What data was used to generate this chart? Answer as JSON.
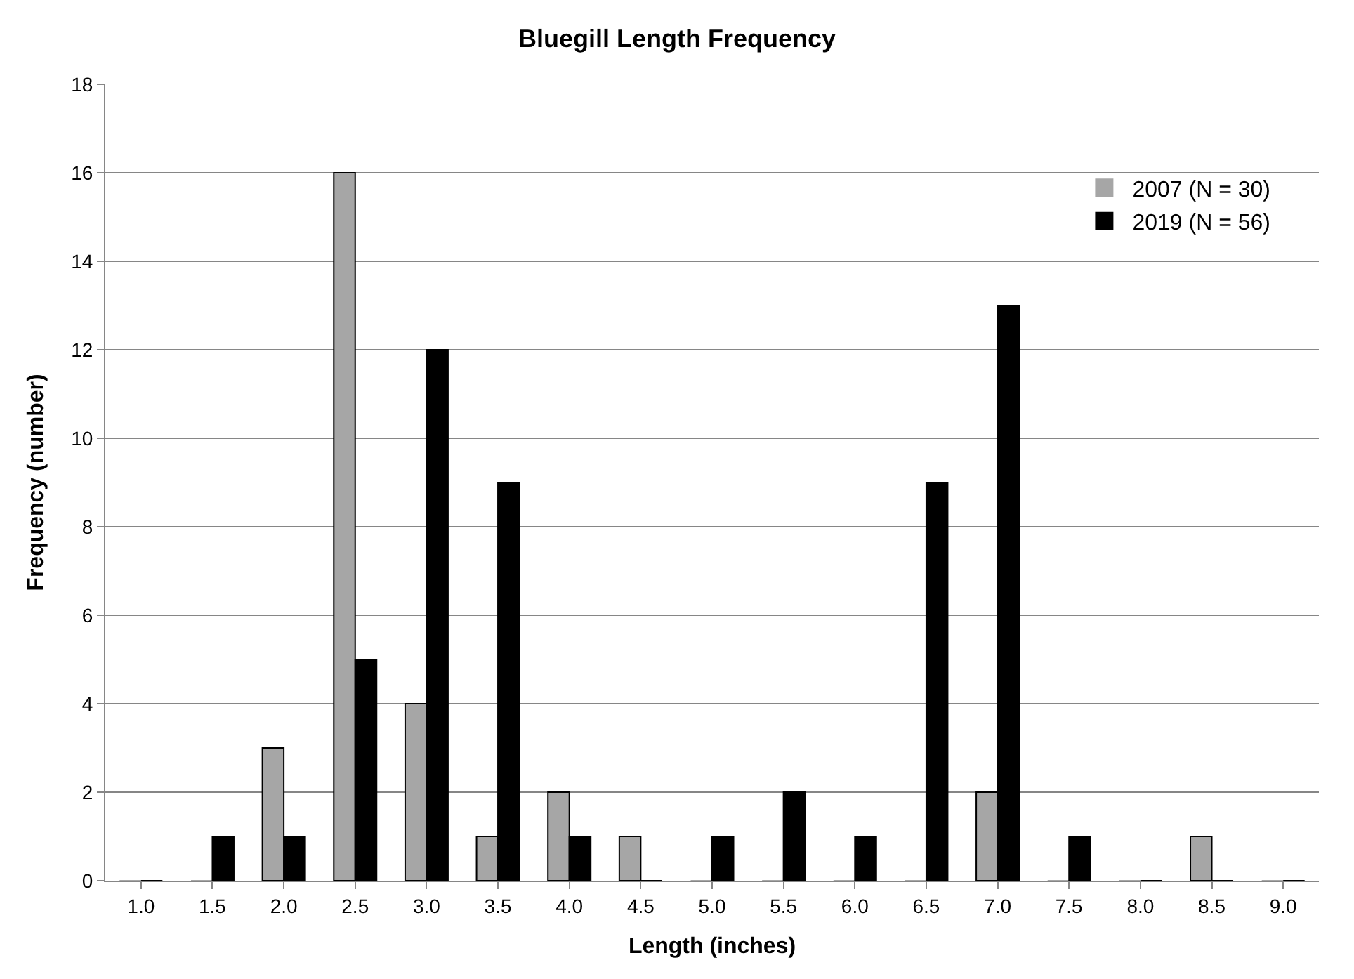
{
  "chart_data": {
    "type": "bar",
    "title": "Bluegill Length Frequency",
    "xlabel": "Length (inches)",
    "ylabel": "Frequency (number)",
    "categories": [
      "1.0",
      "1.5",
      "2.0",
      "2.5",
      "3.0",
      "3.5",
      "4.0",
      "4.5",
      "5.0",
      "5.5",
      "6.0",
      "6.5",
      "7.0",
      "7.5",
      "8.0",
      "8.5",
      "9.0"
    ],
    "series": [
      {
        "name": "2007 (N = 30)",
        "color": "#a6a6a6",
        "values": [
          0,
          0,
          3,
          16,
          4,
          1,
          2,
          1,
          0,
          0,
          0,
          0,
          2,
          0,
          0,
          1,
          0
        ]
      },
      {
        "name": "2019 (N = 56)",
        "color": "#000000",
        "values": [
          0,
          1,
          1,
          5,
          12,
          9,
          1,
          0,
          1,
          2,
          1,
          9,
          13,
          1,
          0,
          0,
          0
        ]
      }
    ],
    "ylim": [
      0,
      18
    ],
    "yticks": [
      0,
      2,
      4,
      6,
      8,
      10,
      12,
      14,
      16,
      18
    ],
    "grid": "y",
    "legend": "top right"
  }
}
